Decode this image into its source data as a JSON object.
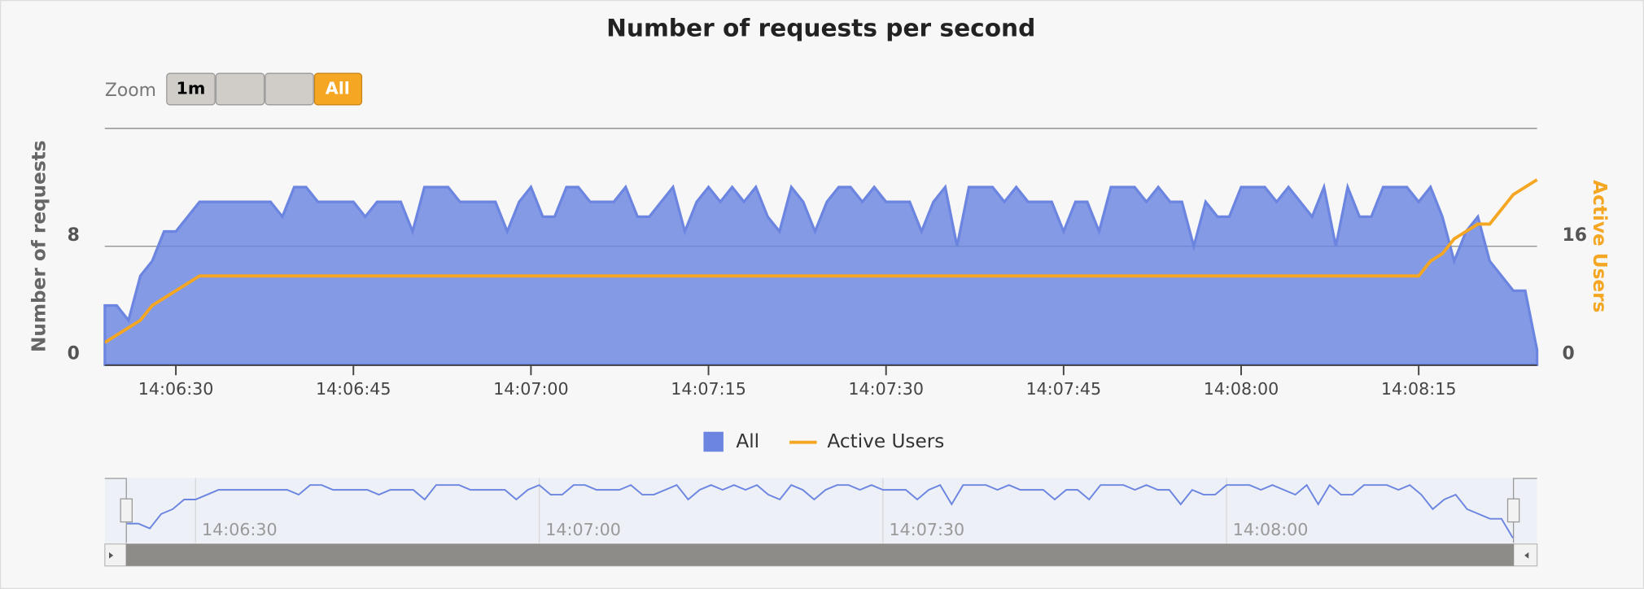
{
  "chart_data": {
    "type": "area",
    "title": "Number of requests per second",
    "zoom_label": "Zoom",
    "zoom_buttons": [
      "1m",
      "All"
    ],
    "y_axis_title": "Number of requests",
    "y2_axis_title": "Active Users",
    "x": [
      "14:06:24",
      "14:06:25",
      "14:06:26",
      "14:06:27",
      "14:06:28",
      "14:06:29",
      "14:06:30",
      "14:06:31",
      "14:06:32",
      "14:06:33",
      "14:06:34",
      "14:06:35",
      "14:06:36",
      "14:06:37",
      "14:06:38",
      "14:06:39",
      "14:06:40",
      "14:06:41",
      "14:06:42",
      "14:06:43",
      "14:06:44",
      "14:06:45",
      "14:06:46",
      "14:06:47",
      "14:06:48",
      "14:06:49",
      "14:06:50",
      "14:06:51",
      "14:06:52",
      "14:06:53",
      "14:06:54",
      "14:06:55",
      "14:06:56",
      "14:06:57",
      "14:06:58",
      "14:06:59",
      "14:07:00",
      "14:07:01",
      "14:07:02",
      "14:07:03",
      "14:07:04",
      "14:07:05",
      "14:07:06",
      "14:07:07",
      "14:07:08",
      "14:07:09",
      "14:07:10",
      "14:07:11",
      "14:07:12",
      "14:07:13",
      "14:07:14",
      "14:07:15",
      "14:07:16",
      "14:07:17",
      "14:07:18",
      "14:07:19",
      "14:07:20",
      "14:07:21",
      "14:07:22",
      "14:07:23",
      "14:07:24",
      "14:07:25",
      "14:07:26",
      "14:07:27",
      "14:07:28",
      "14:07:29",
      "14:07:30",
      "14:07:31",
      "14:07:32",
      "14:07:33",
      "14:07:34",
      "14:07:35",
      "14:07:36",
      "14:07:37",
      "14:07:38",
      "14:07:39",
      "14:07:40",
      "14:07:41",
      "14:07:42",
      "14:07:43",
      "14:07:44",
      "14:07:45",
      "14:07:46",
      "14:07:47",
      "14:07:48",
      "14:07:49",
      "14:07:50",
      "14:07:51",
      "14:07:52",
      "14:07:53",
      "14:07:54",
      "14:07:55",
      "14:07:56",
      "14:07:57",
      "14:07:58",
      "14:07:59",
      "14:08:00",
      "14:08:01",
      "14:08:02",
      "14:08:03",
      "14:08:04",
      "14:08:05",
      "14:08:06",
      "14:08:07",
      "14:08:08",
      "14:08:09",
      "14:08:10",
      "14:08:11",
      "14:08:12",
      "14:08:13",
      "14:08:14",
      "14:08:15",
      "14:08:16",
      "14:08:17",
      "14:08:18",
      "14:08:19",
      "14:08:20",
      "14:08:21",
      "14:08:22",
      "14:08:23",
      "14:08:24",
      "14:08:25"
    ],
    "series": [
      {
        "name": "All",
        "color": "#6b85e0",
        "values": [
          4,
          4,
          3,
          6,
          7,
          9,
          9,
          10,
          11,
          11,
          11,
          11,
          11,
          11,
          11,
          10,
          12,
          12,
          11,
          11,
          11,
          11,
          10,
          11,
          11,
          11,
          9,
          12,
          12,
          12,
          11,
          11,
          11,
          11,
          9,
          11,
          12,
          10,
          10,
          12,
          12,
          11,
          11,
          11,
          12,
          10,
          10,
          11,
          12,
          9,
          11,
          12,
          11,
          12,
          11,
          12,
          10,
          9,
          12,
          11,
          9,
          11,
          12,
          12,
          11,
          12,
          11,
          11,
          11,
          9,
          11,
          12,
          8,
          12,
          12,
          12,
          11,
          12,
          11,
          11,
          11,
          9,
          11,
          11,
          9,
          12,
          12,
          12,
          11,
          12,
          11,
          11,
          8,
          11,
          10,
          10,
          12,
          12,
          12,
          11,
          12,
          11,
          10,
          12,
          8,
          12,
          10,
          10,
          12,
          12,
          12,
          11,
          12,
          10,
          7,
          9,
          10,
          7,
          6,
          5,
          5,
          1
        ]
      },
      {
        "name": "Active Users",
        "color": "#f5a623",
        "axis": "y2",
        "values": [
          3,
          4,
          5,
          6,
          8,
          9,
          10,
          11,
          12,
          12,
          12,
          12,
          12,
          12,
          12,
          12,
          12,
          12,
          12,
          12,
          12,
          12,
          12,
          12,
          12,
          12,
          12,
          12,
          12,
          12,
          12,
          12,
          12,
          12,
          12,
          12,
          12,
          12,
          12,
          12,
          12,
          12,
          12,
          12,
          12,
          12,
          12,
          12,
          12,
          12,
          12,
          12,
          12,
          12,
          12,
          12,
          12,
          12,
          12,
          12,
          12,
          12,
          12,
          12,
          12,
          12,
          12,
          12,
          12,
          12,
          12,
          12,
          12,
          12,
          12,
          12,
          12,
          12,
          12,
          12,
          12,
          12,
          12,
          12,
          12,
          12,
          12,
          12,
          12,
          12,
          12,
          12,
          12,
          12,
          12,
          12,
          12,
          12,
          12,
          12,
          12,
          12,
          12,
          12,
          12,
          12,
          12,
          12,
          12,
          12,
          12,
          12,
          14,
          15,
          17,
          18,
          19,
          19,
          21,
          23,
          24,
          25
        ]
      }
    ],
    "xlim": [
      "14:06:24",
      "14:08:25"
    ],
    "xticks": [
      "14:06:30",
      "14:06:45",
      "14:07:00",
      "14:07:15",
      "14:07:30",
      "14:07:45",
      "14:08:00",
      "14:08:15"
    ],
    "ylim": [
      0,
      16
    ],
    "yticks": [
      0,
      8
    ],
    "y2lim": [
      0,
      32
    ],
    "y2ticks": [
      0,
      16
    ],
    "grid": true,
    "legend": "bottom",
    "navigator_ticks": [
      "14:06:30",
      "14:07:00",
      "14:07:30",
      "14:08:00"
    ]
  }
}
